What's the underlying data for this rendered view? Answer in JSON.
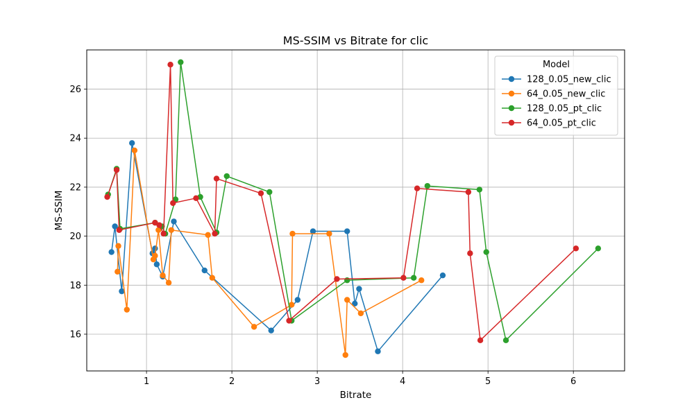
{
  "chart_data": {
    "type": "line",
    "title": "MS-SSIM vs Bitrate for clic",
    "xlabel": "Bitrate",
    "ylabel": "MS-SSIM",
    "xlim": [
      0.3,
      6.6
    ],
    "ylim": [
      14.5,
      27.6
    ],
    "xticks": [
      1,
      2,
      3,
      4,
      5,
      6
    ],
    "yticks": [
      16,
      18,
      20,
      22,
      24,
      26
    ],
    "grid": true,
    "legend": {
      "title": "Model",
      "placement": "top-right"
    },
    "series": [
      {
        "name": "128_0.05_new_clic",
        "color": "#1f77b4",
        "points": [
          [
            0.59,
            19.35
          ],
          [
            0.63,
            20.4
          ],
          [
            0.71,
            17.75
          ],
          [
            0.83,
            23.8
          ],
          [
            1.07,
            19.3
          ],
          [
            1.1,
            19.5
          ],
          [
            1.12,
            18.85
          ],
          [
            1.19,
            18.35
          ],
          [
            1.32,
            20.6
          ],
          [
            1.68,
            18.6
          ],
          [
            2.46,
            16.15
          ],
          [
            2.77,
            17.4
          ],
          [
            2.95,
            20.2
          ],
          [
            3.35,
            20.2
          ],
          [
            3.44,
            17.25
          ],
          [
            3.49,
            17.85
          ],
          [
            3.71,
            15.3
          ],
          [
            4.47,
            18.4
          ]
        ]
      },
      {
        "name": "64_0.05_new_clic",
        "color": "#ff7f0e",
        "points": [
          [
            0.66,
            18.55
          ],
          [
            0.67,
            19.6
          ],
          [
            0.77,
            17.0
          ],
          [
            0.86,
            23.5
          ],
          [
            1.08,
            19.05
          ],
          [
            1.1,
            19.2
          ],
          [
            1.14,
            20.25
          ],
          [
            1.19,
            18.4
          ],
          [
            1.26,
            18.1
          ],
          [
            1.29,
            20.25
          ],
          [
            1.72,
            20.05
          ],
          [
            1.77,
            18.3
          ],
          [
            2.26,
            16.3
          ],
          [
            2.7,
            17.2
          ],
          [
            2.71,
            20.1
          ],
          [
            3.14,
            20.1
          ],
          [
            3.33,
            15.15
          ],
          [
            3.35,
            17.4
          ],
          [
            3.51,
            16.85
          ],
          [
            4.22,
            18.2
          ]
        ]
      },
      {
        "name": "128_0.05_pt_clic",
        "color": "#2ca02c",
        "points": [
          [
            0.55,
            21.7
          ],
          [
            0.65,
            22.75
          ],
          [
            0.69,
            20.3
          ],
          [
            1.1,
            20.55
          ],
          [
            1.18,
            20.4
          ],
          [
            1.22,
            20.1
          ],
          [
            1.34,
            21.5
          ],
          [
            1.4,
            27.1
          ],
          [
            1.63,
            21.6
          ],
          [
            1.82,
            20.15
          ],
          [
            1.94,
            22.45
          ],
          [
            2.44,
            21.8
          ],
          [
            2.7,
            16.55
          ],
          [
            3.35,
            18.2
          ],
          [
            4.13,
            18.3
          ],
          [
            4.29,
            22.05
          ],
          [
            4.9,
            21.9
          ],
          [
            4.98,
            19.35
          ],
          [
            5.21,
            15.75
          ],
          [
            6.29,
            19.5
          ]
        ]
      },
      {
        "name": "64_0.05_pt_clic",
        "color": "#d62728",
        "points": [
          [
            0.54,
            21.6
          ],
          [
            0.65,
            22.7
          ],
          [
            0.68,
            20.25
          ],
          [
            1.1,
            20.55
          ],
          [
            1.15,
            20.45
          ],
          [
            1.2,
            20.1
          ],
          [
            1.28,
            27.0
          ],
          [
            1.31,
            21.35
          ],
          [
            1.58,
            21.55
          ],
          [
            1.8,
            20.1
          ],
          [
            1.82,
            22.35
          ],
          [
            2.34,
            21.75
          ],
          [
            2.67,
            16.55
          ],
          [
            3.23,
            18.25
          ],
          [
            4.01,
            18.3
          ],
          [
            4.17,
            21.95
          ],
          [
            4.77,
            21.8
          ],
          [
            4.79,
            19.3
          ],
          [
            4.91,
            15.75
          ],
          [
            6.03,
            19.5
          ]
        ]
      }
    ]
  }
}
